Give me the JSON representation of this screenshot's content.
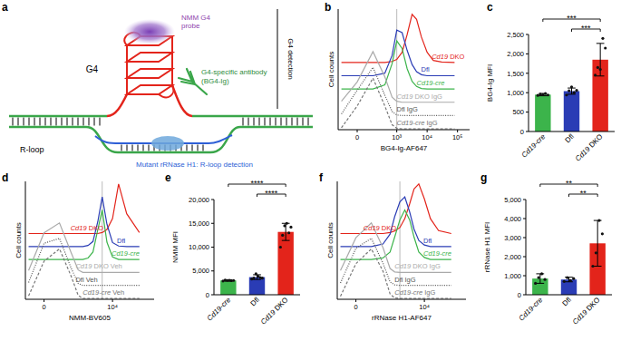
{
  "diagram": {
    "panel_label": "a",
    "g4_probe": [
      "NMM G4",
      "probe"
    ],
    "g4": "G4",
    "antibody": [
      "G4-specific antibody",
      "(BG4-Ig)"
    ],
    "g4_detection": "G4 detection",
    "r_loop": "R-loop",
    "r_loop_detection": "Mutant rRNase H1: R-loop detection"
  },
  "chart_data": [
    {
      "panel_label": "b",
      "type": "line",
      "x_label": "BG4-Ig-AF647",
      "y_label": "Cell counts",
      "log": "x",
      "tick_labels": "x",
      "xlim": [
        -200,
        250000
      ],
      "xticks": [
        0,
        {
          "value": 1000,
          "label": "10³"
        },
        {
          "value": 10000,
          "label": "10⁴"
        },
        {
          "value": 100000,
          "label": "10⁵"
        }
      ],
      "ylim": [
        0,
        100
      ],
      "reference_x": 1000,
      "x": [
        -150,
        0,
        150,
        400,
        700,
        1000,
        1500,
        2200,
        3200,
        4500,
        6500,
        10000,
        16000,
        30000,
        80000
      ],
      "series": [
        {
          "name": "Cd19 DKO",
          "color": "#e3241b",
          "line_style": "solid",
          "values": [
            0,
            0,
            0,
            0,
            2,
            6,
            20,
            55,
            95,
            85,
            50,
            20,
            4,
            1,
            0
          ]
        },
        {
          "name": "Dfl",
          "color": "#2a3cb5",
          "line_style": "solid",
          "values": [
            0,
            0,
            0,
            5,
            40,
            90,
            85,
            50,
            22,
            8,
            2,
            0,
            0,
            0,
            0
          ]
        },
        {
          "name": "Cd19-cre",
          "color": "#3cb44b",
          "line_style": "solid",
          "values": [
            0,
            0,
            0,
            8,
            50,
            95,
            80,
            40,
            15,
            5,
            1,
            0,
            0,
            0,
            0
          ]
        },
        {
          "name": "Cd19 DKO IgG",
          "color": "#aaaaaa",
          "line_style": "solid",
          "values": [
            2,
            40,
            100,
            50,
            10,
            2,
            0,
            0,
            0,
            0,
            0,
            0,
            0,
            0,
            0
          ]
        },
        {
          "name": "Dfl IgG",
          "color": "#555555",
          "line_style": "dotted",
          "values": [
            3,
            50,
            95,
            40,
            8,
            1,
            0,
            0,
            0,
            0,
            0,
            0,
            0,
            0,
            0
          ]
        },
        {
          "name": "Cd19-cre IgG",
          "color": "#777777",
          "line_style": "dashed",
          "values": [
            2,
            45,
            100,
            45,
            8,
            1,
            0,
            0,
            0,
            0,
            0,
            0,
            0,
            0,
            0
          ]
        }
      ]
    },
    {
      "panel_label": "c",
      "type": "bar",
      "y_label": "BG4-Ig MFI",
      "categories": [
        "Cd19-cre",
        "Dfl",
        "Cd19 DKO"
      ],
      "values": [
        950,
        1040,
        1850
      ],
      "errors": [
        30,
        80,
        420
      ],
      "points": [
        [
          930,
          960,
          950,
          980,
          940
        ],
        [
          940,
          1050,
          1150,
          1000,
          1060
        ],
        [
          1450,
          1650,
          1600,
          2400,
          2150
        ]
      ],
      "colors": [
        "#3cb44b",
        "#2a3cb5",
        "#e3241b"
      ],
      "ylim": [
        0,
        2500
      ],
      "yticks": [
        0,
        500,
        {
          "value": 1000,
          "label": "1,000"
        },
        {
          "value": 1500,
          "label": "1,500"
        },
        {
          "value": 2000,
          "label": "2,000"
        },
        {
          "value": 2500,
          "label": "2,500"
        }
      ],
      "significance": [
        {
          "pair": [
            "Cd19-cre",
            "Cd19 DKO"
          ],
          "label": "***"
        },
        {
          "pair": [
            "Dfl",
            "Cd19 DKO"
          ],
          "label": "***"
        }
      ]
    },
    {
      "panel_label": "d",
      "type": "line",
      "x_label": "NMM-BV605",
      "y_label": "Cell counts",
      "log": "x",
      "tick_labels": "x",
      "xlim": [
        -200,
        250000
      ],
      "xticks": [
        0,
        {
          "value": 10000,
          "label": "10⁴"
        }
      ],
      "ylim": [
        0,
        100
      ],
      "reference_x": 4500,
      "x": [
        -150,
        0,
        150,
        400,
        700,
        1000,
        1500,
        2200,
        3200,
        4500,
        6500,
        10000,
        16000,
        30000,
        80000
      ],
      "series": [
        {
          "name": "Cd19 DKO",
          "color": "#e3241b",
          "line_style": "solid",
          "values": [
            0,
            0,
            0,
            0,
            0,
            0,
            0,
            0,
            0,
            2,
            8,
            30,
            100,
            40,
            2
          ]
        },
        {
          "name": "Dfl",
          "color": "#2a3cb5",
          "line_style": "solid",
          "values": [
            0,
            0,
            0,
            0,
            0,
            0,
            2,
            10,
            50,
            100,
            45,
            8,
            1,
            0,
            0
          ]
        },
        {
          "name": "Cd19-cre",
          "color": "#3cb44b",
          "line_style": "solid",
          "values": [
            0,
            0,
            0,
            0,
            0,
            0,
            3,
            15,
            60,
            100,
            35,
            5,
            0,
            0,
            0
          ]
        },
        {
          "name": "Cd19 DKO Veh",
          "color": "#aaaaaa",
          "line_style": "solid",
          "values": [
            4,
            80,
            100,
            40,
            5,
            0,
            0,
            0,
            0,
            0,
            0,
            0,
            0,
            0,
            0
          ]
        },
        {
          "name": "Dfl Veh",
          "color": "#555555",
          "line_style": "dotted",
          "values": [
            6,
            85,
            95,
            35,
            4,
            0,
            0,
            0,
            0,
            0,
            0,
            0,
            0,
            0,
            0
          ]
        },
        {
          "name": "Cd19-cre Veh",
          "color": "#777777",
          "line_style": "dashed",
          "values": [
            5,
            75,
            100,
            45,
            6,
            0,
            0,
            0,
            0,
            0,
            0,
            0,
            0,
            0,
            0
          ]
        }
      ]
    },
    {
      "panel_label": "e",
      "type": "bar",
      "y_label": "NMM MFI",
      "categories": [
        "Cd19-cre",
        "Dfl",
        "Cd19 DKO"
      ],
      "values": [
        3000,
        3700,
        13200
      ],
      "errors": [
        150,
        500,
        1800
      ],
      "points": [
        [
          2900,
          3100,
          3000,
          3050,
          2950,
          3000
        ],
        [
          3300,
          3500,
          4400,
          3900,
          3600,
          3500
        ],
        [
          10000,
          12500,
          14500,
          15000,
          13000,
          14200
        ]
      ],
      "colors": [
        "#3cb44b",
        "#2a3cb5",
        "#e3241b"
      ],
      "ylim": [
        0,
        20000
      ],
      "yticks": [
        0,
        {
          "value": 5000,
          "label": "5,000"
        },
        {
          "value": 10000,
          "label": "10,000"
        },
        {
          "value": 15000,
          "label": "15,000"
        },
        {
          "value": 20000,
          "label": "20,000"
        }
      ],
      "significance": [
        {
          "pair": [
            "Cd19-cre",
            "Cd19 DKO"
          ],
          "label": "****"
        },
        {
          "pair": [
            "Dfl",
            "Cd19 DKO"
          ],
          "label": "****"
        }
      ]
    },
    {
      "panel_label": "f",
      "type": "line",
      "x_label": "rRNase H1-AF647",
      "y_label": "Cell counts",
      "log": "x",
      "tick_labels": "x",
      "xlim": [
        -200,
        250000
      ],
      "xticks": [
        0,
        {
          "value": 10000,
          "label": "10⁴"
        }
      ],
      "ylim": [
        0,
        100
      ],
      "reference_x": 1500,
      "x": [
        -150,
        0,
        150,
        400,
        700,
        1000,
        1500,
        2200,
        3200,
        4500,
        6500,
        10000,
        16000,
        30000,
        80000
      ],
      "series": [
        {
          "name": "Cd19 DKO",
          "color": "#e3241b",
          "line_style": "solid",
          "values": [
            0,
            0,
            0,
            0,
            2,
            5,
            12,
            30,
            60,
            90,
            100,
            70,
            30,
            6,
            0
          ]
        },
        {
          "name": "Dfl",
          "color": "#2a3cb5",
          "line_style": "solid",
          "values": [
            0,
            0,
            0,
            5,
            25,
            60,
            90,
            100,
            70,
            35,
            12,
            3,
            0,
            0,
            0
          ]
        },
        {
          "name": "Cd19-cre",
          "color": "#3cb44b",
          "line_style": "solid",
          "values": [
            0,
            0,
            0,
            3,
            15,
            45,
            80,
            100,
            80,
            45,
            15,
            4,
            0,
            0,
            0
          ]
        },
        {
          "name": "Cd19 DKO IgG",
          "color": "#aaaaaa",
          "line_style": "solid",
          "values": [
            4,
            70,
            100,
            50,
            8,
            1,
            0,
            0,
            0,
            0,
            0,
            0,
            0,
            0,
            0
          ]
        },
        {
          "name": "Dfl IgG",
          "color": "#555555",
          "line_style": "dotted",
          "values": [
            5,
            75,
            95,
            45,
            7,
            1,
            0,
            0,
            0,
            0,
            0,
            0,
            0,
            0,
            0
          ]
        },
        {
          "name": "Cd19-cre IgG",
          "color": "#777777",
          "line_style": "dashed",
          "values": [
            4,
            70,
            100,
            55,
            9,
            1,
            0,
            0,
            0,
            0,
            0,
            0,
            0,
            0,
            0
          ]
        }
      ]
    },
    {
      "panel_label": "g",
      "type": "bar",
      "y_label": "rRNase H1 MFI",
      "categories": [
        "Cd19-cre",
        "Dfl",
        "Cd19 DKO"
      ],
      "values": [
        850,
        800,
        2700
      ],
      "errors": [
        250,
        120,
        1200
      ],
      "points": [
        [
          600,
          900,
          1100,
          800
        ],
        [
          700,
          900,
          750,
          850
        ],
        [
          1500,
          2200,
          3900,
          3200
        ]
      ],
      "colors": [
        "#3cb44b",
        "#2a3cb5",
        "#e3241b"
      ],
      "ylim": [
        0,
        5000
      ],
      "yticks": [
        0,
        {
          "value": 1000,
          "label": "1,000"
        },
        {
          "value": 2000,
          "label": "2,000"
        },
        {
          "value": 3000,
          "label": "3,000"
        },
        {
          "value": 4000,
          "label": "4,000"
        },
        {
          "value": 5000,
          "label": "5,000"
        }
      ],
      "significance": [
        {
          "pair": [
            "Cd19-cre",
            "Cd19 DKO"
          ],
          "label": "**"
        },
        {
          "pair": [
            "Dfl",
            "Cd19 DKO"
          ],
          "label": "**"
        }
      ]
    }
  ]
}
